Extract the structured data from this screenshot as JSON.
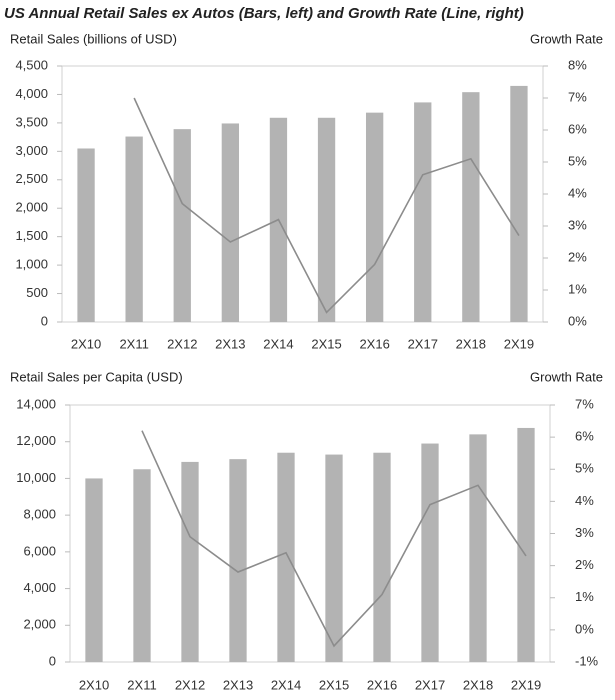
{
  "title": "US Annual Retail Sales ex Autos (Bars, left) and Growth Rate (Line, right)",
  "chart_data": [
    {
      "type": "bar-line",
      "y_label": "Retail Sales (billions of USD)",
      "y2_label": "Growth Rate",
      "categories": [
        "2X10",
        "2X11",
        "2X12",
        "2X13",
        "2X14",
        "2X15",
        "2X16",
        "2X17",
        "2X18",
        "2X19"
      ],
      "series": [
        {
          "type": "bar",
          "color": "#b3b3b3",
          "values": [
            3050,
            3260,
            3390,
            3490,
            3590,
            3590,
            3680,
            3860,
            4040,
            4150
          ]
        },
        {
          "type": "line",
          "axis": "y2",
          "color": "#8c8c8c",
          "values": [
            null,
            7.0,
            3.7,
            2.5,
            3.2,
            0.3,
            1.8,
            4.6,
            5.1,
            2.7
          ]
        }
      ],
      "ylim": [
        0,
        4500
      ],
      "yticks": [
        0,
        500,
        {
          "value": 1000,
          "label": "1,000"
        },
        {
          "value": 1500,
          "label": "1,500"
        },
        {
          "value": 2000,
          "label": "2,000"
        },
        {
          "value": 2500,
          "label": "2,500"
        },
        {
          "value": 3000,
          "label": "3,000"
        },
        {
          "value": 3500,
          "label": "3,500"
        },
        {
          "value": 4000,
          "label": "4,000"
        },
        {
          "value": 4500,
          "label": "4,500"
        }
      ],
      "y2lim": [
        0,
        8
      ],
      "y2ticks": [
        {
          "value": 0,
          "label": "0%"
        },
        {
          "value": 1,
          "label": "1%"
        },
        {
          "value": 2,
          "label": "2%"
        },
        {
          "value": 3,
          "label": "3%"
        },
        {
          "value": 4,
          "label": "4%"
        },
        {
          "value": 5,
          "label": "5%"
        },
        {
          "value": 6,
          "label": "6%"
        },
        {
          "value": 7,
          "label": "7%"
        },
        {
          "value": 8,
          "label": "8%"
        }
      ],
      "grid": false
    },
    {
      "type": "bar-line",
      "y_label": "Retail Sales per Capita (USD)",
      "y2_label": "Growth Rate",
      "categories": [
        "2X10",
        "2X11",
        "2X12",
        "2X13",
        "2X14",
        "2X15",
        "2X16",
        "2X17",
        "2X18",
        "2X19"
      ],
      "series": [
        {
          "type": "bar",
          "color": "#b3b3b3",
          "values": [
            10000,
            10500,
            10900,
            11050,
            11400,
            11300,
            11400,
            11900,
            12400,
            12750
          ]
        },
        {
          "type": "line",
          "axis": "y2",
          "color": "#8c8c8c",
          "values": [
            null,
            6.2,
            2.9,
            1.8,
            2.4,
            -0.5,
            1.1,
            3.9,
            4.5,
            2.3
          ]
        }
      ],
      "ylim": [
        0,
        14000
      ],
      "yticks": [
        0,
        {
          "value": 2000,
          "label": "2,000"
        },
        {
          "value": 4000,
          "label": "4,000"
        },
        {
          "value": 6000,
          "label": "6,000"
        },
        {
          "value": 8000,
          "label": "8,000"
        },
        {
          "value": 10000,
          "label": "10,000"
        },
        {
          "value": 12000,
          "label": "12,000"
        },
        {
          "value": 14000,
          "label": "14,000"
        }
      ],
      "y2lim": [
        -1,
        7
      ],
      "y2ticks": [
        {
          "value": -1,
          "label": "-1%"
        },
        {
          "value": 0,
          "label": "0%"
        },
        {
          "value": 1,
          "label": "1%"
        },
        {
          "value": 2,
          "label": "2%"
        },
        {
          "value": 3,
          "label": "3%"
        },
        {
          "value": 4,
          "label": "4%"
        },
        {
          "value": 5,
          "label": "5%"
        },
        {
          "value": 6,
          "label": "6%"
        },
        {
          "value": 7,
          "label": "7%"
        }
      ],
      "grid": false
    }
  ]
}
